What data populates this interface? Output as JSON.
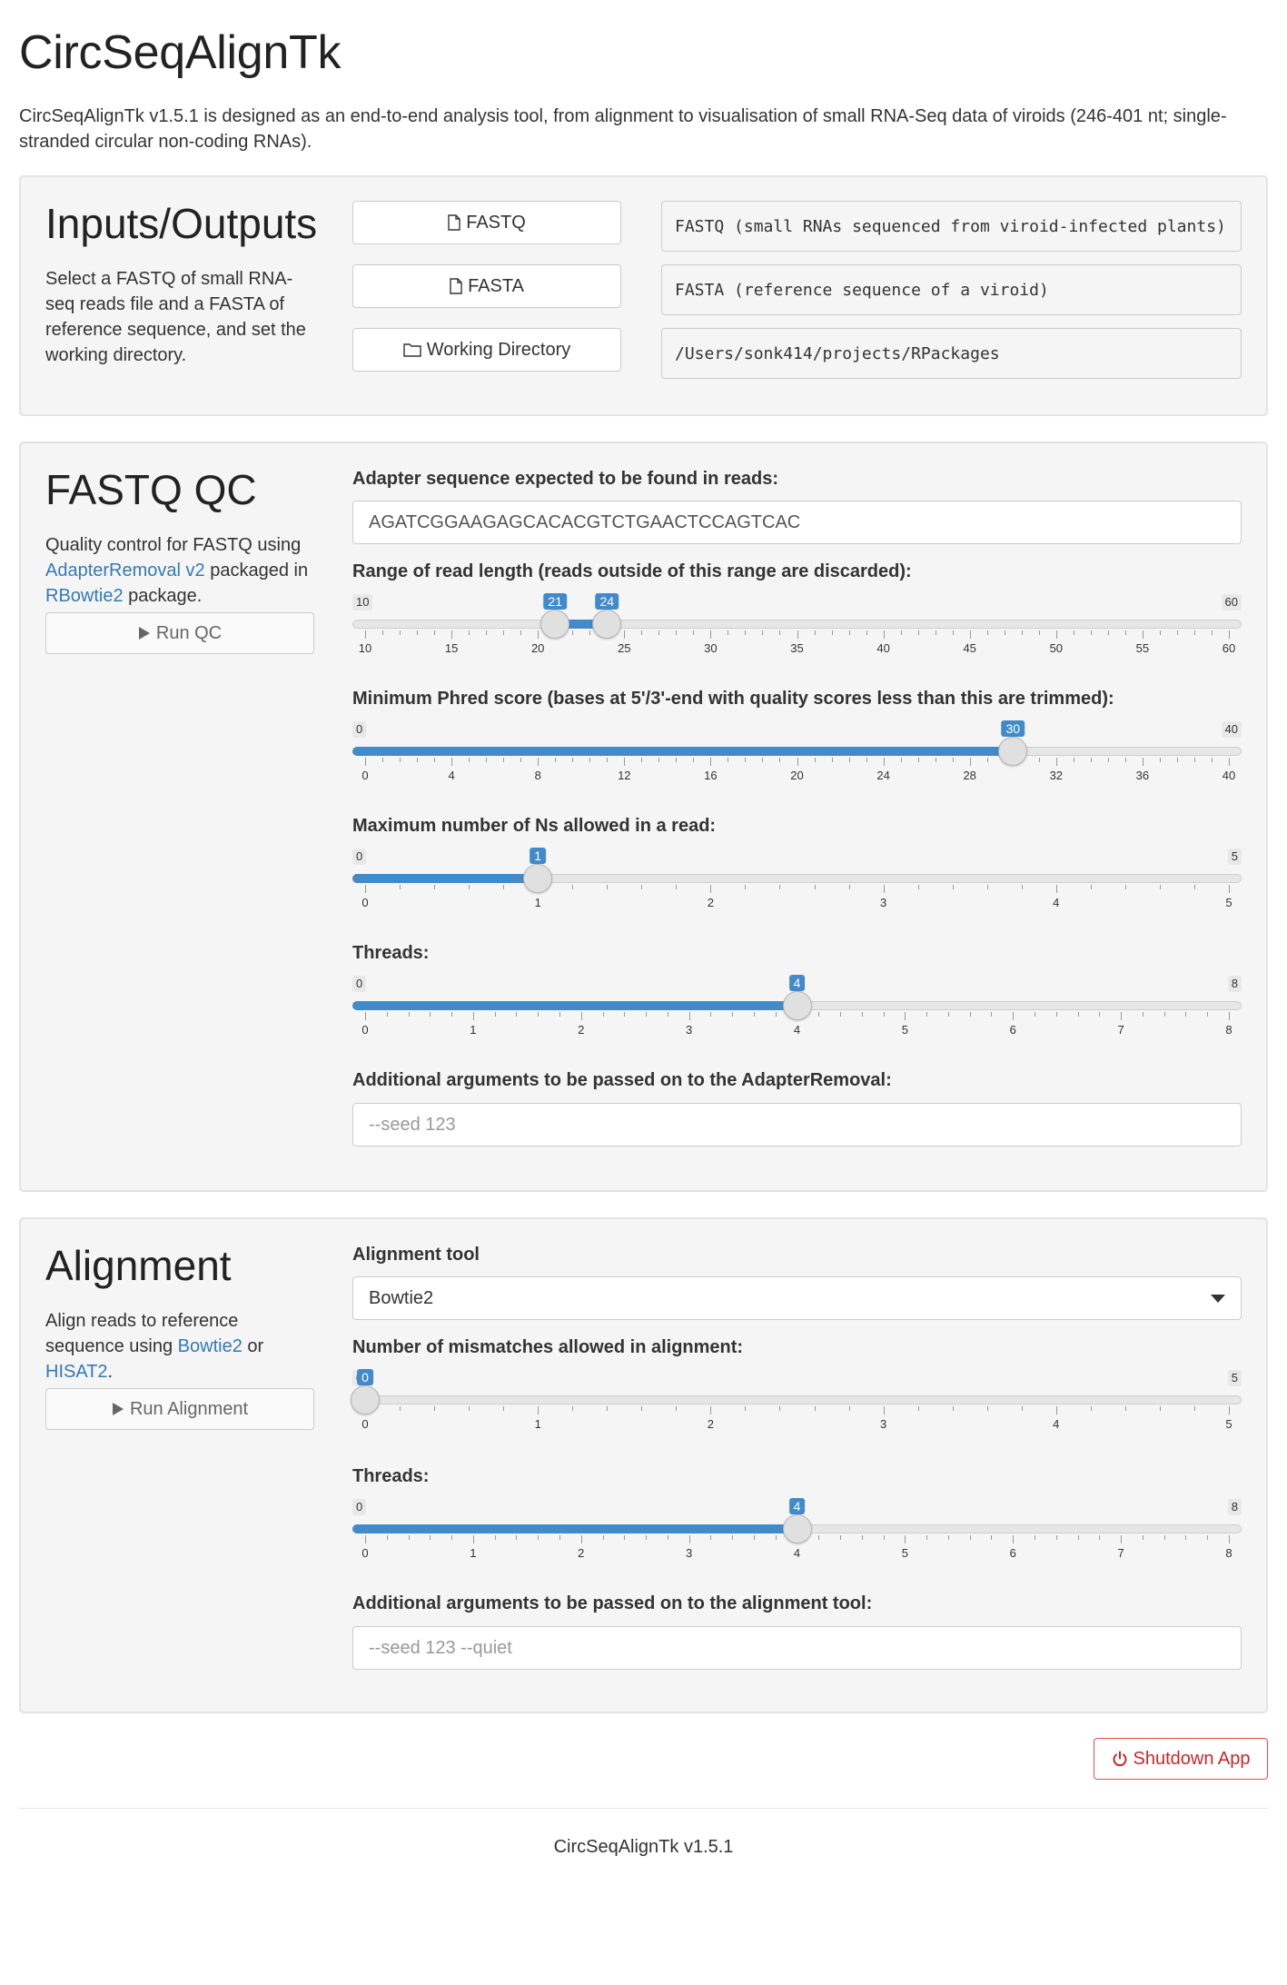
{
  "app": {
    "title": "CircSeqAlignTk",
    "description": "CircSeqAlignTk v1.5.1 is designed as an end-to-end analysis tool, from alignment to visualisation of small RNA-Seq data of viroids (246-401 nt; single-stranded circular non-coding RNAs)."
  },
  "io": {
    "title": "Inputs/Outputs",
    "description": "Select a FASTQ of small RNA-seq reads file and a FASTA of reference sequence, and set the working directory.",
    "fastq_button": "FASTQ",
    "fastq_value": "FASTQ (small RNAs sequenced from viroid-infected plants)",
    "fasta_button": "FASTA",
    "fasta_value": "FASTA (reference sequence of a viroid)",
    "wd_button": "Working Directory",
    "wd_value": "/Users/sonk414/projects/RPackages"
  },
  "qc": {
    "title": "FASTQ QC",
    "desc_pre": "Quality control for FASTQ using ",
    "desc_link1": "AdapterRemoval v2",
    "desc_mid": " packaged in ",
    "desc_link2": "RBowtie2",
    "desc_post": " package.",
    "run_button": "Run QC",
    "adapter_label": "Adapter sequence expected to be found in reads:",
    "adapter_value": "AGATCGGAAGAGCACACGTCTGAACTCCAGTCAC",
    "read_length_label": "Range of read length (reads outside of this range are discarded):",
    "phred_label": "Minimum Phred score (bases at 5'/3'-end with quality scores less than this are trimmed):",
    "maxns_label": "Maximum number of Ns allowed in a read:",
    "threads_label": "Threads:",
    "args_label": "Additional arguments to be passed on to the AdapterRemoval:",
    "args_placeholder": "--seed 123"
  },
  "alignment": {
    "title": "Alignment",
    "desc_pre": "Align reads to reference sequence using ",
    "desc_link1": "Bowtie2",
    "desc_mid": " or ",
    "desc_link2": "HISAT2",
    "desc_post": ".",
    "run_button": "Run Alignment",
    "tool_label": "Alignment tool",
    "tool_value": "Bowtie2",
    "mismatch_label": "Number of mismatches allowed in alignment:",
    "threads_label": "Threads:",
    "args_label": "Additional arguments to be passed on to the alignment tool:",
    "args_placeholder": "--seed 123 --quiet"
  },
  "sliders": {
    "read_length": {
      "min": 10,
      "max": 60,
      "low": 21,
      "high": 24,
      "ticks": [
        10,
        15,
        20,
        25,
        30,
        35,
        40,
        45,
        50,
        55,
        60
      ],
      "min_label": "10",
      "max_label": "60",
      "low_label": "21",
      "high_label": "24"
    },
    "phred": {
      "min": 0,
      "max": 40,
      "value": 30,
      "ticks": [
        0,
        4,
        8,
        12,
        16,
        20,
        24,
        28,
        32,
        36,
        40
      ],
      "min_label": "0",
      "max_label": "40",
      "value_label": "30"
    },
    "maxns": {
      "min": 0,
      "max": 5,
      "value": 1,
      "ticks": [
        0,
        1,
        2,
        3,
        4,
        5
      ],
      "min_label": "0",
      "max_label": "5",
      "value_label": "1"
    },
    "qc_threads": {
      "min": 0,
      "max": 8,
      "value": 4,
      "ticks": [
        0,
        1,
        2,
        3,
        4,
        5,
        6,
        7,
        8
      ],
      "min_label": "0",
      "max_label": "8",
      "value_label": "4"
    },
    "mismatch": {
      "min": 0,
      "max": 5,
      "value": 0,
      "ticks": [
        0,
        1,
        2,
        3,
        4,
        5
      ],
      "min_label": "0",
      "max_label": "5",
      "value_label": "0"
    },
    "aln_threads": {
      "min": 0,
      "max": 8,
      "value": 4,
      "ticks": [
        0,
        1,
        2,
        3,
        4,
        5,
        6,
        7,
        8
      ],
      "min_label": "0",
      "max_label": "8",
      "value_label": "4"
    }
  },
  "shutdown_button": "Shutdown App",
  "footer": "CircSeqAlignTk v1.5.1",
  "colors": {
    "accent": "#428bca",
    "link": "#337ab7",
    "danger": "#c62828"
  }
}
